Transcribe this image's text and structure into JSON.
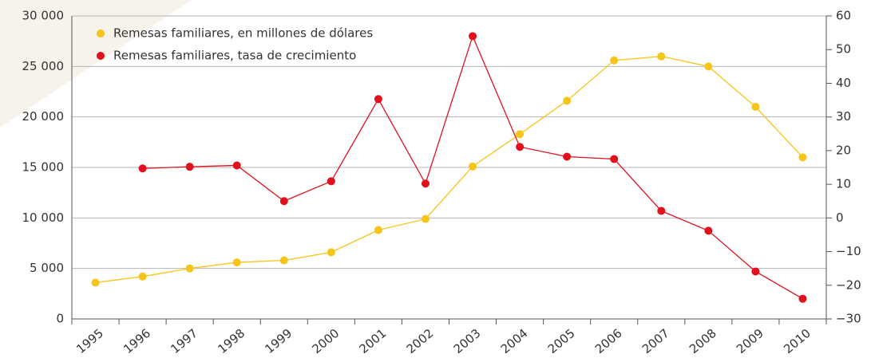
{
  "chart_data": {
    "type": "line",
    "categories": [
      "1995",
      "1996",
      "1997",
      "1998",
      "1999",
      "2000",
      "2001",
      "2002",
      "2003",
      "2004",
      "2005",
      "2006",
      "2007",
      "2008",
      "2009",
      "2010"
    ],
    "series": [
      {
        "name": "Remesas familiares, en millones de dólares",
        "color": "#f7c41a",
        "axis": "y",
        "values": [
          3600,
          4200,
          5000,
          5600,
          5800,
          6600,
          8800,
          9900,
          15100,
          18300,
          21600,
          25600,
          26000,
          25000,
          21000,
          16000
        ]
      },
      {
        "name": "Remesas familiares, tasa de crecimiento",
        "color": "#e0101c",
        "axis": "y2",
        "values": [
          null,
          14.7,
          15.2,
          15.6,
          5.0,
          10.9,
          35.3,
          10.2,
          54.0,
          21.1,
          18.2,
          17.5,
          2.1,
          -3.8,
          -15.9,
          -24
        ]
      }
    ],
    "ylim": [
      0,
      30000
    ],
    "yticks": [
      0,
      {
        "value": 5000,
        "label": "5 000"
      },
      {
        "value": 10000,
        "label": "10 000"
      },
      {
        "value": 15000,
        "label": "15 000"
      },
      {
        "value": 20000,
        "label": "20 000"
      },
      {
        "value": 25000,
        "label": "25 000"
      },
      {
        "value": 30000,
        "label": "30 000"
      }
    ],
    "y2lim": [
      -30,
      60
    ],
    "y2ticks": [
      {
        "value": -30,
        "label": "−30"
      },
      {
        "value": -20,
        "label": "−20"
      },
      {
        "value": -10,
        "label": "−10"
      },
      0,
      10,
      20,
      30,
      40,
      50,
      60
    ],
    "grid": true,
    "legend": "top-left"
  }
}
